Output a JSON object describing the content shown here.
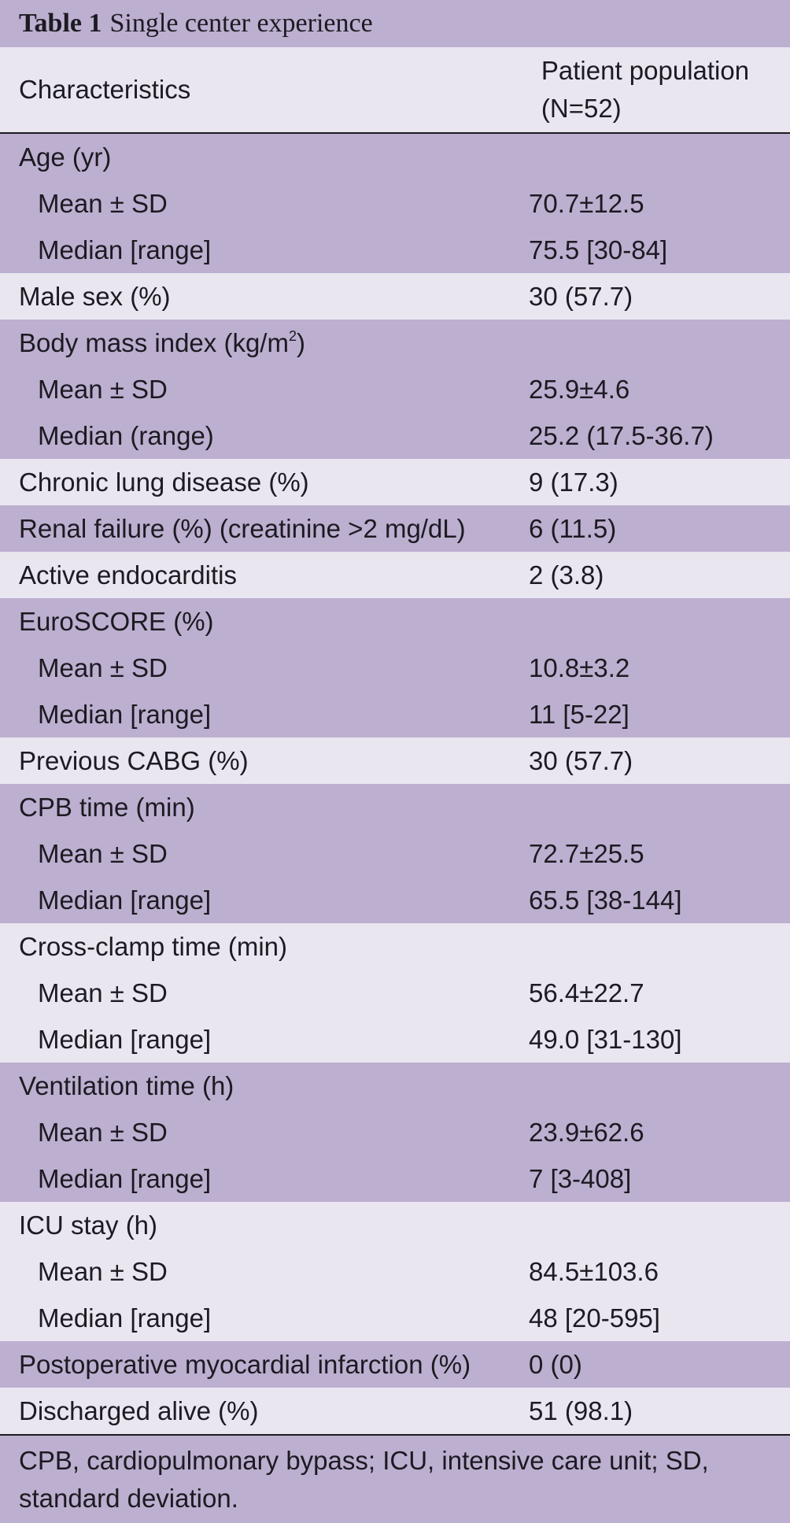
{
  "caption": {
    "number": "Table 1",
    "title": "Single center experience"
  },
  "header": {
    "col1": "Characteristics",
    "col2_line1": "Patient population",
    "col2_line2": "(N=52)"
  },
  "groups": [
    {
      "shade": "dark",
      "rows": [
        {
          "label": "Age (yr)",
          "value": ""
        },
        {
          "label": "Mean ± SD",
          "value": "70.7±12.5",
          "sub": true
        },
        {
          "label": "Median [range]",
          "value": "75.5 [30-84]",
          "sub": true
        }
      ]
    },
    {
      "shade": "light",
      "rows": [
        {
          "label": "Male sex (%)",
          "value": "30 (57.7)"
        }
      ]
    },
    {
      "shade": "dark",
      "rows": [
        {
          "label": "Body mass index (kg/m",
          "sup": "2",
          "label_after": ")",
          "value": ""
        },
        {
          "label": "Mean ± SD",
          "value": "25.9±4.6",
          "sub": true
        },
        {
          "label": "Median (range)",
          "value": "25.2 (17.5-36.7)",
          "sub": true
        }
      ]
    },
    {
      "shade": "light",
      "rows": [
        {
          "label": "Chronic lung disease (%)",
          "value": "9 (17.3)"
        }
      ]
    },
    {
      "shade": "dark",
      "rows": [
        {
          "label": "Renal failure (%) (creatinine >2 mg/dL)",
          "value": "6 (11.5)"
        }
      ]
    },
    {
      "shade": "light",
      "rows": [
        {
          "label": "Active endocarditis",
          "value": "2 (3.8)"
        }
      ]
    },
    {
      "shade": "dark",
      "rows": [
        {
          "label": "EuroSCORE (%)",
          "value": ""
        },
        {
          "label": "Mean ± SD",
          "value": "10.8±3.2",
          "sub": true
        },
        {
          "label": "Median [range]",
          "value": "11 [5-22]",
          "sub": true
        }
      ]
    },
    {
      "shade": "light",
      "rows": [
        {
          "label": "Previous CABG (%)",
          "value": "30 (57.7)"
        }
      ]
    },
    {
      "shade": "dark",
      "rows": [
        {
          "label": "CPB time (min)",
          "value": ""
        },
        {
          "label": "Mean ± SD",
          "value": "72.7±25.5",
          "sub": true
        },
        {
          "label": "Median [range]",
          "value": "65.5 [38-144]",
          "sub": true
        }
      ]
    },
    {
      "shade": "light",
      "rows": [
        {
          "label": "Cross-clamp time (min)",
          "value": ""
        },
        {
          "label": "Mean ± SD",
          "value": "56.4±22.7",
          "sub": true
        },
        {
          "label": "Median [range]",
          "value": "49.0 [31-130]",
          "sub": true
        }
      ]
    },
    {
      "shade": "dark",
      "rows": [
        {
          "label": "Ventilation time (h)",
          "value": ""
        },
        {
          "label": "Mean ± SD",
          "value": "23.9±62.6",
          "sub": true
        },
        {
          "label": "Median [range]",
          "value": "7 [3-408]",
          "sub": true
        }
      ]
    },
    {
      "shade": "light",
      "rows": [
        {
          "label": "ICU stay (h)",
          "value": ""
        },
        {
          "label": "Mean ± SD",
          "value": "84.5±103.6",
          "sub": true
        },
        {
          "label": "Median [range]",
          "value": "48 [20-595]",
          "sub": true
        }
      ]
    },
    {
      "shade": "dark",
      "rows": [
        {
          "label": "Postoperative myocardial infarction (%)",
          "value": "0 (0)"
        }
      ]
    },
    {
      "shade": "light",
      "rows": [
        {
          "label": "Discharged alive (%)",
          "value": "51 (98.1)"
        }
      ]
    }
  ],
  "footnote": "CPB, cardiopulmonary bypass; ICU, intensive care unit; SD, standard deviation.",
  "colors": {
    "dark_band": "#bdafcf",
    "light_band": "#e9e6ef",
    "text": "#1c1a22"
  }
}
